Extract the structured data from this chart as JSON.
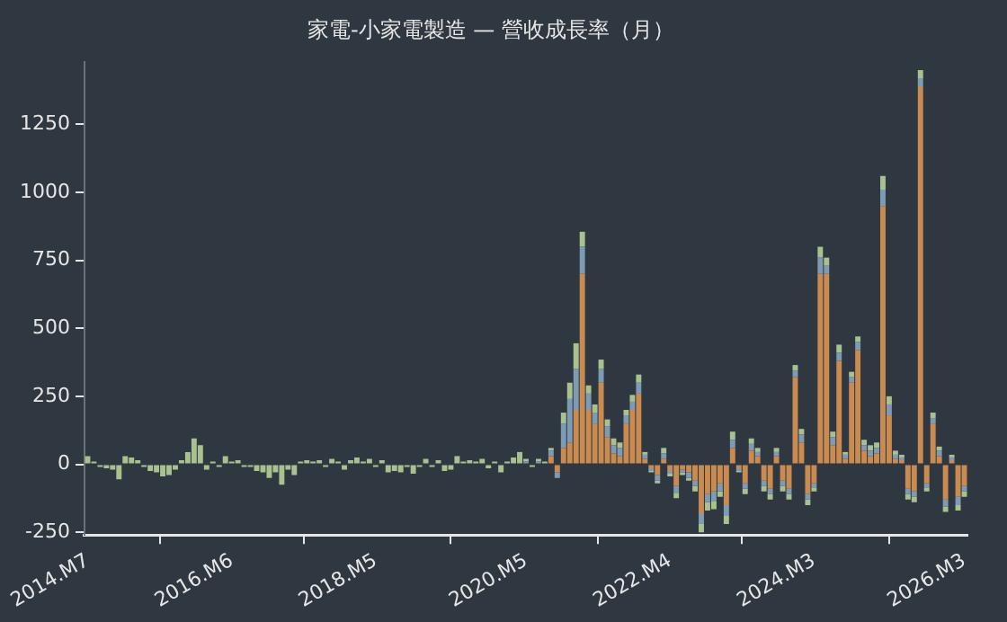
{
  "chart_data": {
    "type": "bar",
    "title": "家電-小家電製造 — 營收成長率（月）",
    "stacked": true,
    "grid": false,
    "legend": false,
    "categories": [
      "2014.M7",
      null,
      null,
      null,
      null,
      null,
      null,
      null,
      null,
      null,
      null,
      null,
      null,
      null,
      null,
      null,
      null,
      null,
      null,
      null,
      null,
      null,
      null,
      "2016.M6",
      null,
      null,
      null,
      null,
      null,
      null,
      null,
      null,
      null,
      null,
      null,
      null,
      null,
      null,
      null,
      null,
      null,
      null,
      null,
      null,
      null,
      null,
      "2018.M5",
      null,
      null,
      null,
      null,
      null,
      null,
      null,
      null,
      null,
      null,
      null,
      null,
      null,
      null,
      null,
      null,
      null,
      null,
      null,
      null,
      null,
      null,
      null,
      "2020.M5",
      null,
      null,
      null,
      null,
      null,
      null,
      null,
      null,
      null,
      null,
      null,
      null,
      null,
      null,
      null,
      null,
      null,
      null,
      null,
      null,
      null,
      null,
      "2022.M4",
      null,
      null,
      null,
      null,
      null,
      null,
      null,
      null,
      null,
      null,
      null,
      null,
      null,
      null,
      null,
      null,
      null,
      null,
      null,
      null,
      null,
      null,
      "2024.M3",
      null,
      null,
      null,
      null,
      null,
      null,
      null,
      null,
      null,
      null,
      null,
      null,
      null,
      null,
      null,
      null,
      null,
      null,
      null,
      null,
      null,
      null,
      null,
      "2026.M3"
    ],
    "ylim": [
      -260,
      1480
    ],
    "yticks": [
      -250,
      0,
      250,
      500,
      750,
      1000,
      1250
    ],
    "series": [
      {
        "color": "#c98b50",
        "values": [
          null,
          null,
          null,
          null,
          null,
          null,
          null,
          null,
          null,
          null,
          null,
          null,
          null,
          null,
          null,
          null,
          null,
          null,
          null,
          null,
          null,
          null,
          null,
          null,
          null,
          null,
          null,
          null,
          null,
          null,
          null,
          null,
          null,
          null,
          null,
          null,
          null,
          null,
          null,
          null,
          null,
          null,
          null,
          null,
          null,
          null,
          null,
          null,
          null,
          null,
          null,
          null,
          null,
          null,
          null,
          null,
          null,
          null,
          null,
          null,
          null,
          null,
          null,
          null,
          null,
          null,
          null,
          null,
          null,
          null,
          null,
          null,
          null,
          null,
          30,
          -30,
          60,
          80,
          200,
          700,
          200,
          150,
          300,
          100,
          40,
          30,
          150,
          200,
          260,
          20,
          -15,
          -40,
          20,
          -25,
          -80,
          -20,
          -30,
          -60,
          -180,
          -110,
          -100,
          -70,
          -150,
          60,
          -15,
          -70,
          50,
          30,
          -60,
          -90,
          30,
          -60,
          -90,
          320,
          80,
          -110,
          -70,
          700,
          700,
          70,
          380,
          20,
          300,
          420,
          50,
          30,
          40,
          950,
          180,
          20,
          15,
          -90,
          -100,
          1390,
          -70,
          150,
          30,
          -130,
          15,
          -120,
          -80
        ]
      },
      {
        "color": "#7d9bb5",
        "values": [
          null,
          null,
          null,
          null,
          null,
          null,
          null,
          null,
          null,
          null,
          null,
          null,
          null,
          null,
          null,
          null,
          null,
          null,
          null,
          null,
          null,
          null,
          null,
          null,
          null,
          null,
          null,
          null,
          null,
          null,
          null,
          null,
          null,
          null,
          null,
          null,
          null,
          null,
          null,
          null,
          null,
          null,
          null,
          null,
          null,
          null,
          null,
          null,
          null,
          null,
          null,
          null,
          null,
          null,
          null,
          null,
          null,
          null,
          null,
          null,
          null,
          null,
          null,
          null,
          null,
          null,
          null,
          null,
          null,
          null,
          10,
          null,
          10,
          null,
          20,
          -20,
          90,
          160,
          150,
          100,
          60,
          40,
          50,
          40,
          30,
          30,
          30,
          30,
          40,
          15,
          -10,
          -20,
          20,
          -10,
          -25,
          -10,
          -20,
          -20,
          -40,
          -30,
          -35,
          -30,
          -40,
          30,
          -10,
          -20,
          25,
          15,
          -20,
          -20,
          15,
          -20,
          -20,
          25,
          30,
          -20,
          -15,
          60,
          30,
          30,
          30,
          15,
          20,
          30,
          20,
          20,
          20,
          60,
          40,
          15,
          10,
          -20,
          -20,
          30,
          -15,
          20,
          20,
          -25,
          10,
          -30,
          -20
        ]
      },
      {
        "color": "#a9c18f",
        "values": [
          30,
          10,
          -10,
          -15,
          -20,
          -55,
          30,
          25,
          15,
          -10,
          -25,
          -30,
          -45,
          -40,
          -20,
          15,
          45,
          95,
          70,
          -20,
          10,
          -10,
          30,
          10,
          15,
          -10,
          -10,
          -25,
          -30,
          -50,
          -30,
          -75,
          -20,
          -40,
          10,
          15,
          10,
          15,
          -10,
          20,
          10,
          -20,
          15,
          25,
          10,
          20,
          -10,
          15,
          -30,
          -25,
          -30,
          -10,
          -35,
          -10,
          20,
          -10,
          15,
          -25,
          -20,
          30,
          10,
          15,
          10,
          20,
          -15,
          10,
          -30,
          10,
          25,
          45,
          10,
          -10,
          10,
          10,
          10,
          null,
          40,
          60,
          95,
          55,
          30,
          30,
          35,
          25,
          25,
          20,
          20,
          25,
          30,
          10,
          -5,
          -10,
          20,
          -10,
          -20,
          -10,
          -10,
          -20,
          -30,
          -30,
          -30,
          -20,
          -30,
          30,
          -5,
          -20,
          20,
          15,
          -20,
          -20,
          15,
          -20,
          -20,
          20,
          20,
          -20,
          -15,
          40,
          30,
          20,
          30,
          10,
          20,
          20,
          20,
          20,
          20,
          50,
          30,
          15,
          10,
          -20,
          -20,
          30,
          -15,
          20,
          15,
          -20,
          10,
          -20,
          -20
        ]
      }
    ]
  }
}
